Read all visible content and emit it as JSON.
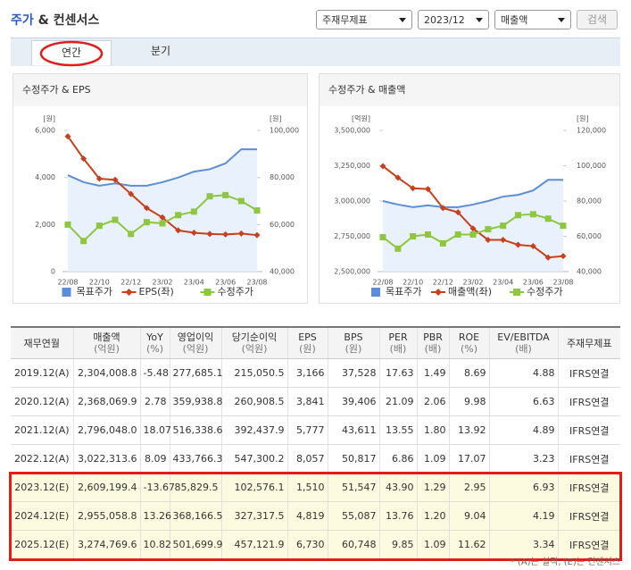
{
  "header": {
    "title_main": "주가",
    "title_sub": "& 컨센서스",
    "selects": [
      "주재무제표",
      "2023/12",
      "매출액"
    ],
    "button": "검색"
  },
  "tabs": [
    "연간",
    "분기"
  ],
  "chart_data": [
    {
      "type": "line",
      "title": "수정주가 & EPS",
      "y_unit": "[원]",
      "y2_unit": "[원]",
      "categories": [
        "22/08",
        null,
        "22/10",
        null,
        "22/12",
        null,
        "23/02",
        null,
        "23/04",
        null,
        "23/06",
        null,
        "23/08"
      ],
      "ylim": [
        0,
        6000
      ],
      "yticks": [
        0,
        {
          "value": 2000,
          "label": "2,000"
        },
        {
          "value": 4000,
          "label": "4,000"
        },
        {
          "value": 6000,
          "label": "6,000"
        }
      ],
      "y2lim": [
        40000,
        100000
      ],
      "y2ticks": [
        {
          "value": 40000,
          "label": "40,000"
        },
        {
          "value": 60000,
          "label": "60,000"
        },
        {
          "value": 80000,
          "label": "80,000"
        },
        {
          "value": 100000,
          "label": "100,000"
        }
      ],
      "series": [
        {
          "name": "목표주가",
          "color": "#5b8ed6",
          "axis": "y2",
          "area": true,
          "values": [
            81000,
            78000,
            76500,
            77500,
            76500,
            76500,
            78000,
            80000,
            82500,
            83500,
            86000,
            92000,
            92000
          ]
        },
        {
          "name": "EPS(좌)",
          "color": "#c8401c",
          "axis": "y",
          "marker": "diamond",
          "values": [
            5750,
            4800,
            3950,
            3900,
            3300,
            2700,
            2300,
            1750,
            1650,
            1600,
            1580,
            1620,
            1550
          ]
        },
        {
          "name": "수정주가",
          "color": "#8dc63f",
          "axis": "y2",
          "marker": "square",
          "values": [
            60000,
            53000,
            59500,
            62000,
            56000,
            61000,
            60500,
            64000,
            65500,
            72000,
            72500,
            70000,
            66000
          ]
        }
      ]
    },
    {
      "type": "line",
      "title": "수정주가 & 매출액",
      "y_unit": "[억원]",
      "y2_unit": "[원]",
      "categories": [
        "22/08",
        null,
        "22/10",
        null,
        "22/12",
        null,
        "23/02",
        null,
        "23/04",
        null,
        "23/06",
        null,
        "23/08"
      ],
      "ylim": [
        2500000,
        3500000
      ],
      "yticks": [
        {
          "value": 2500000,
          "label": "2,500,000"
        },
        {
          "value": 2750000,
          "label": "2,750,000"
        },
        {
          "value": 3000000,
          "label": "3,000,000"
        },
        {
          "value": 3250000,
          "label": "3,250,000"
        },
        {
          "value": 3500000,
          "label": "3,500,000"
        }
      ],
      "y2lim": [
        40000,
        120000
      ],
      "y2ticks": [
        {
          "value": 40000,
          "label": "40,000"
        },
        {
          "value": 60000,
          "label": "60,000"
        },
        {
          "value": 80000,
          "label": "80,000"
        },
        {
          "value": 100000,
          "label": "100,000"
        },
        {
          "value": 120000,
          "label": "120,000"
        }
      ],
      "series": [
        {
          "name": "목표주가",
          "color": "#5b8ed6",
          "axis": "y2",
          "area": true,
          "values": [
            80000,
            78000,
            76500,
            77500,
            76500,
            76500,
            78000,
            80000,
            82500,
            83500,
            86000,
            92000,
            92000
          ]
        },
        {
          "name": "매출액(좌)",
          "color": "#c8401c",
          "axis": "y",
          "marker": "diamond",
          "values": [
            3247000,
            3165000,
            3090000,
            3085000,
            2950000,
            2920000,
            2805000,
            2725000,
            2725000,
            2690000,
            2680000,
            2600000,
            2610000
          ]
        },
        {
          "name": "수정주가",
          "color": "#8dc63f",
          "axis": "y2",
          "marker": "square",
          "values": [
            59500,
            53000,
            60000,
            61000,
            56000,
            61000,
            61000,
            64000,
            66000,
            72000,
            72500,
            70000,
            66000
          ]
        }
      ]
    }
  ],
  "table": {
    "columns": [
      {
        "name": "재무연월"
      },
      {
        "name": "매출액",
        "unit": "(억원)"
      },
      {
        "name": "YoY",
        "unit": "(%)"
      },
      {
        "name": "영업이익",
        "unit": "(억원)"
      },
      {
        "name": "당기순이익",
        "unit": "(억원)"
      },
      {
        "name": "EPS",
        "unit": "(원)"
      },
      {
        "name": "BPS",
        "unit": "(원)"
      },
      {
        "name": "PER",
        "unit": "(배)"
      },
      {
        "name": "PBR",
        "unit": "(배)"
      },
      {
        "name": "ROE",
        "unit": "(%)"
      },
      {
        "name": "EV/EBITDA",
        "unit": "(배)"
      },
      {
        "name": "주재무제표"
      }
    ],
    "rows": [
      [
        "2019.12(A)",
        "2,304,008.8",
        "-5.48",
        "277,685.1",
        "215,050.5",
        "3,166",
        "37,528",
        "17.63",
        "1.49",
        "8.69",
        "4.88",
        "IFRS연결"
      ],
      [
        "2020.12(A)",
        "2,368,069.9",
        "2.78",
        "359,938.8",
        "260,908.5",
        "3,841",
        "39,406",
        "21.09",
        "2.06",
        "9.98",
        "6.63",
        "IFRS연결"
      ],
      [
        "2021.12(A)",
        "2,796,048.0",
        "18.07",
        "516,338.6",
        "392,437.9",
        "5,777",
        "43,611",
        "13.55",
        "1.80",
        "13.92",
        "4.89",
        "IFRS연결"
      ],
      [
        "2022.12(A)",
        "3,022,313.6",
        "8.09",
        "433,766.3",
        "547,300.2",
        "8,057",
        "50,817",
        "6.86",
        "1.09",
        "17.07",
        "3.23",
        "IFRS연결"
      ],
      [
        "2023.12(E)",
        "2,609,199.4",
        "-13.67",
        "85,829.5",
        "102,576.1",
        "1,510",
        "51,547",
        "43.90",
        "1.29",
        "2.95",
        "6.93",
        "IFRS연결"
      ],
      [
        "2024.12(E)",
        "2,955,058.8",
        "13.26",
        "368,166.5",
        "327,317.5",
        "4,819",
        "55,087",
        "13.76",
        "1.20",
        "9.04",
        "4.19",
        "IFRS연결"
      ],
      [
        "2025.12(E)",
        "3,274,769.6",
        "10.82",
        "501,699.9",
        "457,121.9",
        "6,730",
        "60,748",
        "9.85",
        "1.09",
        "11.62",
        "3.34",
        "IFRS연결"
      ]
    ]
  },
  "footnote": "* (A)는 실적, (E)는 컨센서스"
}
